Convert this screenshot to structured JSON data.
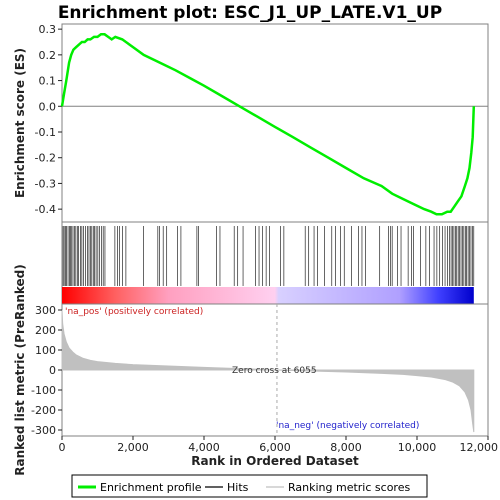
{
  "title": "Enrichment plot: ESC_J1_UP_LATE.V1_UP",
  "colors": {
    "profile": "#00ee00",
    "hits": "#000000",
    "metric": "#c0c0c0",
    "pos_label": "#cc2222",
    "neg_label": "#2222cc",
    "frame": "#808080"
  },
  "legend": {
    "items": [
      {
        "label": "Enrichment profile",
        "color": "#00ee00",
        "style": "thick-line"
      },
      {
        "label": "Hits",
        "color": "#000000",
        "style": "line"
      },
      {
        "label": "Ranking metric scores",
        "color": "#c0c0c0",
        "style": "line"
      }
    ]
  },
  "chart_data": [
    {
      "type": "line",
      "panel": "enrichment-profile",
      "title": "Enrichment plot: ESC_J1_UP_LATE.V1_UP",
      "ylabel": "Enrichment score (ES)",
      "xlim": [
        0,
        12000
      ],
      "ylim": [
        -0.45,
        0.32
      ],
      "yticks": [
        0.3,
        0.2,
        0.1,
        0.0,
        -0.1,
        -0.2,
        -0.3,
        -0.4
      ],
      "ytick_labels": [
        "0.3",
        "0.2",
        "0.1",
        "0.0",
        "-0.1",
        "-0.2",
        "-0.3",
        "-0.4"
      ],
      "series": [
        {
          "x": [
            0,
            60,
            120,
            200,
            260,
            320,
            400,
            480,
            560,
            640,
            720,
            800,
            900,
            1000,
            1100,
            1200,
            1300,
            1400,
            1500,
            1700,
            2000,
            2300,
            2600,
            2900,
            3200,
            3600,
            4000,
            4500,
            5000,
            5500,
            6000,
            6500,
            7000,
            7500,
            8000,
            8500,
            9000,
            9300,
            9600,
            9900,
            10200,
            10400,
            10550,
            10700,
            10850,
            10950,
            11050,
            11150,
            11250,
            11350,
            11420,
            11480,
            11530,
            11570,
            11600
          ],
          "y": [
            0.0,
            0.05,
            0.1,
            0.17,
            0.2,
            0.22,
            0.23,
            0.24,
            0.25,
            0.25,
            0.26,
            0.26,
            0.27,
            0.27,
            0.28,
            0.28,
            0.27,
            0.26,
            0.27,
            0.26,
            0.23,
            0.2,
            0.18,
            0.16,
            0.14,
            0.11,
            0.08,
            0.04,
            0.0,
            -0.04,
            -0.08,
            -0.12,
            -0.16,
            -0.2,
            -0.24,
            -0.28,
            -0.31,
            -0.34,
            -0.36,
            -0.38,
            -0.4,
            -0.41,
            -0.42,
            -0.42,
            -0.41,
            -0.41,
            -0.39,
            -0.37,
            -0.35,
            -0.31,
            -0.28,
            -0.24,
            -0.18,
            -0.12,
            0.0
          ]
        }
      ]
    },
    {
      "type": "bar",
      "panel": "hits",
      "hit_positions": [
        30,
        60,
        95,
        130,
        170,
        210,
        240,
        275,
        310,
        350,
        390,
        430,
        470,
        520,
        560,
        600,
        660,
        720,
        760,
        800,
        840,
        880,
        920,
        960,
        1010,
        1060,
        1110,
        1160,
        1210,
        1490,
        1560,
        1620,
        1700,
        1800,
        2300,
        2700,
        2750,
        2850,
        2950,
        3250,
        3350,
        3800,
        3850,
        4350,
        4450,
        4850,
        4950,
        5100,
        5450,
        5550,
        5650,
        5750,
        5850,
        6150,
        6250,
        6850,
        6950,
        7100,
        7200,
        7400,
        7600,
        7700,
        7850,
        7950,
        8150,
        8350,
        8450,
        8550,
        8950,
        9200,
        9250,
        9300,
        9450,
        9550,
        9750,
        9850,
        9900,
        10100,
        10250,
        10350,
        10480,
        10560,
        10640,
        10720,
        10790,
        10860,
        10910,
        10960,
        11000,
        11040,
        11080,
        11120,
        11160,
        11200,
        11240,
        11280,
        11320,
        11360,
        11400,
        11440,
        11480,
        11520,
        11560,
        11600
      ],
      "colorbar": {
        "stops": [
          {
            "rank": 0,
            "color": "#ff0000"
          },
          {
            "rank": 1500,
            "color": "#ff6060"
          },
          {
            "rank": 3000,
            "color": "#ffa0c0"
          },
          {
            "rank": 6000,
            "color": "#ffd0f0"
          },
          {
            "rank": 6100,
            "color": "#d8d0ff"
          },
          {
            "rank": 9500,
            "color": "#b0a0ff"
          },
          {
            "rank": 10600,
            "color": "#4040ff"
          },
          {
            "rank": 11600,
            "color": "#0000cc"
          }
        ]
      }
    },
    {
      "type": "area",
      "panel": "ranking-metric",
      "xlabel": "Rank in Ordered Dataset",
      "ylabel": "Ranked list metric (PreRanked)",
      "xlim": [
        0,
        12000
      ],
      "ylim": [
        -330,
        330
      ],
      "xticks": [
        0,
        2000,
        4000,
        6000,
        8000,
        10000,
        12000
      ],
      "xtick_labels": [
        "0",
        "2,000",
        "4,000",
        "6,000",
        "8,000",
        "10,000",
        "12,000"
      ],
      "yticks": [
        300,
        200,
        100,
        0,
        -100,
        -200,
        -300
      ],
      "ytick_labels": [
        "300",
        "200",
        "100",
        "0",
        "-100",
        "-200",
        "-300"
      ],
      "x": [
        0,
        20,
        60,
        120,
        200,
        300,
        400,
        600,
        800,
        1000,
        1500,
        2000,
        3000,
        4000,
        5000,
        6055,
        7000,
        8000,
        9000,
        9600,
        10000,
        10400,
        10800,
        11000,
        11200,
        11350,
        11450,
        11520,
        11570,
        11600
      ],
      "values": [
        300,
        230,
        180,
        140,
        110,
        90,
        75,
        58,
        48,
        42,
        33,
        27,
        20,
        13,
        7,
        0,
        -5,
        -10,
        -17,
        -22,
        -28,
        -35,
        -48,
        -60,
        -80,
        -110,
        -150,
        -200,
        -270,
        -310
      ],
      "annotations": {
        "zero_cross": "Zero cross at 6055",
        "zero_cross_rank": 6055,
        "pos_label": "'na_pos' (positively correlated)",
        "neg_label": "'na_neg' (negatively correlated)"
      }
    }
  ]
}
